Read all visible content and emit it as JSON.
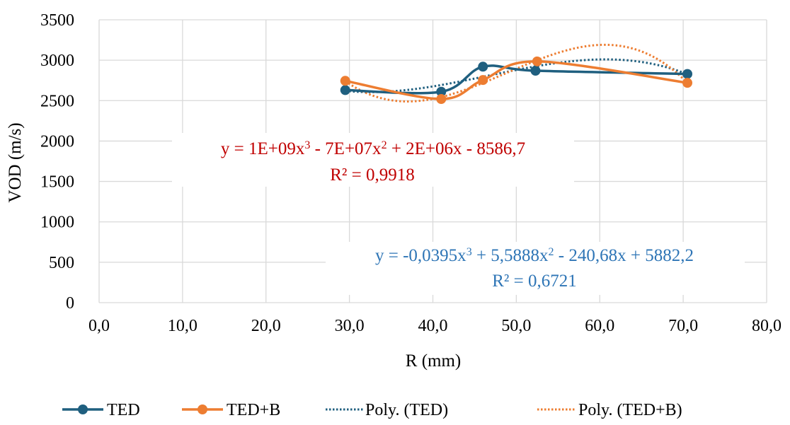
{
  "chart_data": {
    "type": "scatter",
    "title": "",
    "xlabel": "R (mm)",
    "ylabel": "VOD (m/s)",
    "xlim": [
      0,
      80
    ],
    "ylim": [
      0,
      3500
    ],
    "x_ticks": [
      "0,0",
      "10,0",
      "20,0",
      "30,0",
      "40,0",
      "50,0",
      "60,0",
      "70,0",
      "80,0"
    ],
    "y_ticks": [
      "0",
      "500",
      "1000",
      "1500",
      "2000",
      "2500",
      "3000",
      "3500"
    ],
    "grid": true,
    "legend_position": "bottom",
    "series": [
      {
        "name": "TED",
        "color": "#1f5f7f",
        "style": "smooth-line-markers",
        "points": [
          [
            29.5,
            2630
          ],
          [
            41.0,
            2610
          ],
          [
            46.0,
            2920
          ],
          [
            52.3,
            2870
          ],
          [
            70.5,
            2830
          ]
        ]
      },
      {
        "name": "TED+B",
        "color": "#ed7d31",
        "style": "smooth-line-markers",
        "points": [
          [
            29.5,
            2745
          ],
          [
            41.0,
            2520
          ],
          [
            46.0,
            2755
          ],
          [
            52.5,
            2985
          ],
          [
            70.5,
            2720
          ]
        ]
      },
      {
        "name": "Poly. (TED)",
        "color": "#1f5f7f",
        "style": "dotted",
        "trend_of": "TED"
      },
      {
        "name": "Poly. (TED+B)",
        "color": "#ed7d31",
        "style": "dotted",
        "trend_of": "TED+B"
      }
    ],
    "annotations": [
      {
        "id": "eq-tedb",
        "line1": "y = 1E+09x³ - 7E+07x² + 2E+06x - 8586,7",
        "line2": "R² = 0,9918",
        "color": "#c00000"
      },
      {
        "id": "eq-ted",
        "line1": "y = -0,0395x³ + 5,5888x² - 240,68x + 5882,2",
        "line2": "R² = 0,6721",
        "color": "#2e75b6"
      }
    ]
  }
}
